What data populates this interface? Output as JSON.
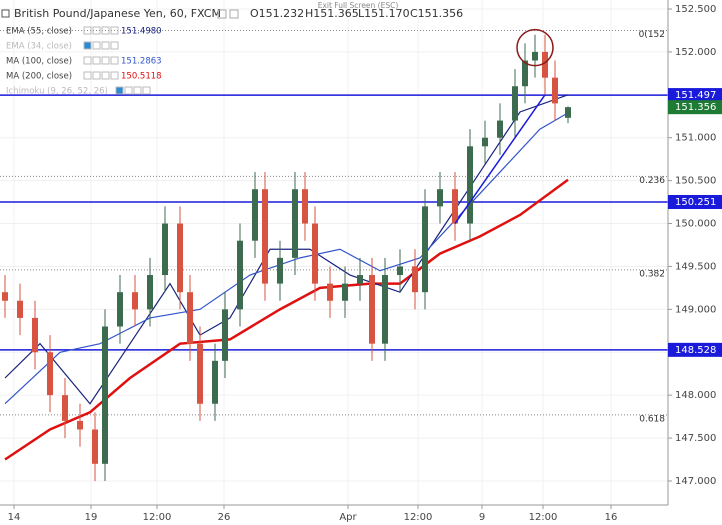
{
  "chart_data": {
    "type": "candlestick",
    "title": "British Pound/Japanese Yen, 60, FXCM",
    "ohlc_text": [
      "O151.232",
      "H151.365",
      "L151.170",
      "C151.356"
    ],
    "banner": "Exit Full Screen (ESC)",
    "legend": [
      {
        "name": "EMA (55, close)",
        "value": "151.4980",
        "color": "#1a237e"
      },
      {
        "name": "EMA (34, close)",
        "value": null,
        "color": "#aaaaaa"
      },
      {
        "name": "MA (100, close)",
        "value": "151.2863",
        "color": "#3355cc"
      },
      {
        "name": "MA (200, close)",
        "value": "150.5118",
        "color": "#e01010"
      },
      {
        "name": "Ichimoku (9, 26, 52, 26)",
        "value": null,
        "color": "#aaaaaa"
      }
    ],
    "up_color": "#3d6b4f",
    "down_color": "#d75442",
    "x": [
      1.25,
      5,
      8.75,
      12.5,
      16.25,
      20,
      23.75,
      26.25,
      30,
      33.75,
      37.5,
      41.25,
      45,
      47.5,
      50,
      53.75,
      56.25,
      60,
      63.75,
      66.25,
      70,
      73.75,
      76.25,
      78.75,
      82.5,
      86.25,
      90,
      93,
      96.25,
      100,
      103.75,
      106.25,
      110,
      113.75,
      117.5,
      121.25,
      125,
      128.75,
      131.25,
      133.75,
      136.25,
      138.75,
      142
    ],
    "open": [
      149.2,
      149.1,
      148.9,
      148.5,
      148.0,
      147.7,
      147.6,
      147.2,
      148.8,
      149.2,
      149.0,
      149.4,
      150.0,
      149.2,
      148.6,
      147.9,
      148.4,
      149.0,
      149.8,
      150.4,
      149.3,
      149.6,
      150.4,
      150.0,
      149.3,
      149.1,
      149.3,
      149.4,
      148.6,
      149.4,
      149.5,
      149.2,
      150.2,
      150.4,
      150.0,
      150.9,
      151.0,
      151.2,
      151.6,
      151.9,
      152.0,
      151.7,
      151.232
    ],
    "high": [
      149.4,
      149.3,
      149.1,
      148.7,
      148.2,
      147.9,
      147.8,
      149.0,
      149.4,
      149.4,
      149.6,
      150.2,
      150.2,
      149.4,
      148.8,
      148.6,
      149.2,
      150.0,
      150.6,
      150.6,
      149.8,
      150.6,
      150.6,
      150.2,
      149.5,
      149.5,
      149.6,
      149.6,
      149.6,
      149.7,
      149.7,
      150.4,
      150.6,
      150.6,
      151.1,
      151.2,
      151.4,
      151.8,
      152.1,
      152.2,
      152.2,
      151.9,
      151.365
    ],
    "low": [
      148.9,
      148.7,
      148.3,
      147.8,
      147.5,
      147.4,
      147.0,
      147.0,
      148.6,
      148.8,
      148.8,
      149.2,
      149.0,
      148.4,
      147.7,
      147.7,
      148.2,
      148.8,
      149.6,
      149.1,
      149.1,
      149.4,
      149.8,
      149.1,
      148.9,
      148.9,
      149.1,
      148.4,
      148.4,
      149.2,
      149.0,
      149.0,
      150.0,
      149.8,
      149.8,
      150.7,
      150.8,
      151.0,
      151.4,
      151.7,
      151.5,
      151.2,
      151.17
    ],
    "close": [
      149.1,
      148.9,
      148.5,
      148.0,
      147.7,
      147.6,
      147.2,
      148.8,
      149.2,
      149.0,
      149.4,
      150.0,
      149.2,
      148.6,
      147.9,
      148.4,
      149.0,
      149.8,
      150.4,
      149.3,
      149.6,
      150.4,
      150.0,
      149.3,
      149.1,
      149.3,
      149.4,
      148.6,
      149.4,
      149.5,
      149.2,
      150.2,
      150.4,
      150.0,
      150.9,
      151.0,
      151.2,
      151.6,
      151.9,
      152.0,
      151.7,
      151.4,
      151.356
    ],
    "series": [
      {
        "name": "MA (200, close)",
        "color": "#e01010",
        "width": 2.5,
        "x": [
          1.25,
          12.5,
          22.5,
          32.5,
          45,
          57.5,
          70,
          80,
          92.5,
          100,
          110,
          120,
          130,
          142
        ],
        "values": [
          147.25,
          147.6,
          147.8,
          148.2,
          148.6,
          148.65,
          149.0,
          149.25,
          149.3,
          149.3,
          149.65,
          149.85,
          150.1,
          150.51
        ]
      },
      {
        "name": "EMA (55, close)",
        "color": "#1a237e",
        "width": 1.2,
        "x": [
          1.25,
          10,
          22.5,
          32.5,
          42.5,
          50,
          57.5,
          67.5,
          77.5,
          87.5,
          100,
          110,
          120,
          130,
          142
        ],
        "values": [
          148.2,
          148.6,
          147.9,
          148.6,
          149.3,
          148.7,
          148.9,
          149.7,
          149.7,
          149.4,
          149.2,
          149.9,
          150.6,
          151.3,
          151.5
        ]
      },
      {
        "name": "MA (100, close)",
        "color": "#3355cc",
        "width": 1.2,
        "x": [
          1.25,
          15,
          25,
          37.5,
          50,
          62.5,
          75,
          85,
          95,
          105,
          115,
          125,
          135,
          142
        ],
        "values": [
          147.9,
          148.5,
          148.6,
          148.9,
          149.0,
          149.4,
          149.6,
          149.7,
          149.45,
          149.6,
          150.1,
          150.6,
          151.1,
          151.29
        ]
      }
    ],
    "hlines": [
      151.497,
      150.251,
      148.528
    ],
    "hline_color": "#1a1adb",
    "last_price": 151.356,
    "last_color": "#1e7b34",
    "fib": [
      {
        "label": "0(152",
        "value": 152.25
      },
      {
        "label": "0.236",
        "value": 150.55
      },
      {
        "label": "0.382",
        "value": 149.46
      },
      {
        "label": "0.618",
        "value": 147.77
      }
    ],
    "trendline": {
      "x": [
        113.75,
        136.25
      ],
      "values": [
        150.0,
        151.5
      ],
      "color": "#1a1adb"
    },
    "circle": {
      "x": 133.75,
      "value": 152.05,
      "color": "#8b1a1a"
    },
    "xlim": [
      0,
      167
    ],
    "ylim": [
      146.72,
      152.605
    ],
    "xticks": [
      {
        "value": 3.5,
        "label": "14"
      },
      {
        "value": 22.75,
        "label": "19"
      },
      {
        "value": 39.25,
        "label": "12:00"
      },
      {
        "value": 56,
        "label": "26"
      },
      {
        "value": 87,
        "label": "Apr"
      },
      {
        "value": 104.5,
        "label": "12:00"
      },
      {
        "value": 120.5,
        "label": "9"
      },
      {
        "value": 135.75,
        "label": "12:00"
      },
      {
        "value": 152.75,
        "label": "16"
      }
    ],
    "yticks": [
      {
        "value": 147,
        "label": "147.000"
      },
      {
        "value": 147.5,
        "label": "147.500"
      },
      {
        "value": 148,
        "label": "148.000"
      },
      {
        "value": 148.5,
        "label": "148.500"
      },
      {
        "value": 149,
        "label": "149.000"
      },
      {
        "value": 149.5,
        "label": "149.500"
      },
      {
        "value": 150,
        "label": "150.000"
      },
      {
        "value": 150.5,
        "label": "150.500"
      },
      {
        "value": 151,
        "label": "151.000"
      },
      {
        "value": 151.5,
        "label": "151.500"
      },
      {
        "value": 152,
        "label": "152.000"
      },
      {
        "value": 152.5,
        "label": "152.500"
      }
    ]
  }
}
